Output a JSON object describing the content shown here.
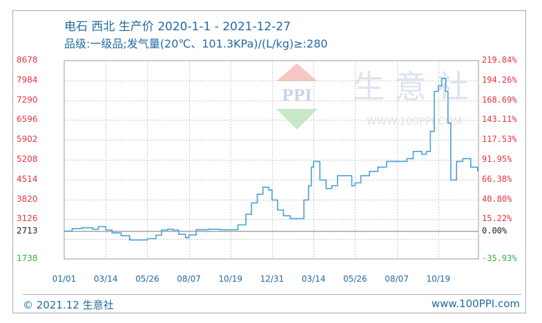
{
  "header": {
    "title": "电石 西北 生产价 2020-1-1 - 2021-12-27",
    "subtitle": "品级:一级品;发气量(20℃、101.3KPa)/(L/kg)≥:280"
  },
  "footer": {
    "copyright": "© 2021.12 生意社",
    "website": "www.100PPI.com"
  },
  "watermark": {
    "logo_text": "PPI",
    "brand_text": "生 意 社",
    "url_text": "WWW.100PPI.COM"
  },
  "colors": {
    "line": "#4a9fd8",
    "axis_up": "#e8333a",
    "axis_base": "#222222",
    "axis_down": "#3cb043",
    "title": "#1f6aa5"
  },
  "chart_data": {
    "type": "line",
    "title": "电石 西北 生产价 2020-1-1 - 2021-12-27",
    "subtitle": "品级:一级品;发气量(20℃、101.3KPa)/(L/kg)≥:280",
    "xlabel": "",
    "ylabel": "",
    "ylim": [
      1738,
      8678
    ],
    "y2lim": [
      "-35.93%",
      "219.84%"
    ],
    "grid": true,
    "legend": null,
    "baseline": 2713,
    "y_ticks_left": [
      "8678",
      "7984",
      "7290",
      "6596",
      "5902",
      "5208",
      "4514",
      "3820",
      "3126",
      "2713",
      "1738"
    ],
    "y_ticks_right": [
      "219.84%",
      "194.26%",
      "168.69%",
      "143.11%",
      "117.53%",
      "91.95%",
      "66.38%",
      "40.80%",
      "15.22%",
      "0.00%",
      "-35.93%"
    ],
    "x_ticks": [
      "01/01",
      "03/14",
      "05/26",
      "08/07",
      "10/19",
      "12/31",
      "03/14",
      "05/26",
      "08/07",
      "10/19"
    ],
    "series": [
      {
        "name": "电石 西北 生产价",
        "x": [
          "2020-01-01",
          "2020-01-15",
          "2020-02-01",
          "2020-02-20",
          "2020-03-01",
          "2020-03-14",
          "2020-03-25",
          "2020-04-10",
          "2020-04-25",
          "2020-05-10",
          "2020-05-26",
          "2020-06-10",
          "2020-06-20",
          "2020-07-01",
          "2020-07-10",
          "2020-07-20",
          "2020-08-01",
          "2020-08-07",
          "2020-08-20",
          "2020-09-10",
          "2020-09-30",
          "2020-10-19",
          "2020-11-01",
          "2020-11-15",
          "2020-11-25",
          "2020-12-05",
          "2020-12-15",
          "2020-12-25",
          "2020-12-31",
          "2021-01-10",
          "2021-01-20",
          "2021-02-01",
          "2021-02-15",
          "2021-02-25",
          "2021-03-05",
          "2021-03-10",
          "2021-03-14",
          "2021-03-25",
          "2021-04-05",
          "2021-04-15",
          "2021-04-25",
          "2021-05-10",
          "2021-05-20",
          "2021-05-26",
          "2021-06-05",
          "2021-06-20",
          "2021-07-05",
          "2021-07-20",
          "2021-08-07",
          "2021-08-25",
          "2021-09-05",
          "2021-09-20",
          "2021-09-28",
          "2021-10-05",
          "2021-10-12",
          "2021-10-19",
          "2021-10-25",
          "2021-11-01",
          "2021-11-05",
          "2021-11-10",
          "2021-11-20",
          "2021-12-01",
          "2021-12-15",
          "2021-12-27"
        ],
        "values": [
          2713,
          2800,
          2830,
          2780,
          2870,
          2750,
          2650,
          2550,
          2400,
          2400,
          2450,
          2570,
          2750,
          2780,
          2750,
          2600,
          2480,
          2580,
          2760,
          2780,
          2760,
          2760,
          2930,
          3300,
          3700,
          4000,
          4250,
          4150,
          3800,
          3450,
          3250,
          3150,
          3150,
          3800,
          4300,
          4950,
          5150,
          4500,
          4200,
          4300,
          4650,
          4650,
          4300,
          4400,
          4650,
          4800,
          4950,
          5150,
          5150,
          5250,
          5500,
          5400,
          5500,
          6200,
          7600,
          7800,
          8050,
          7600,
          6500,
          4500,
          5150,
          5250,
          4950,
          4800
        ]
      }
    ]
  }
}
